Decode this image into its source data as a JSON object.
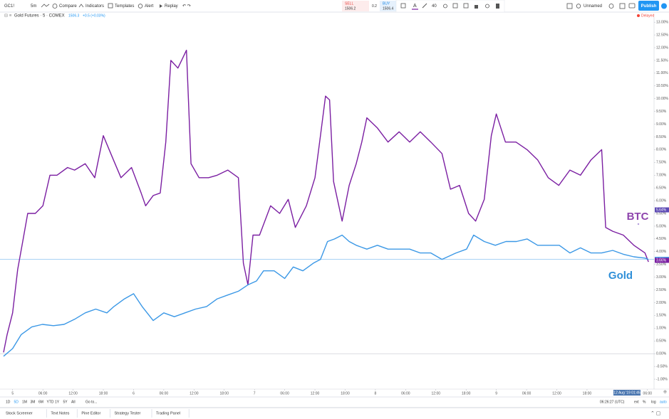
{
  "toolbar": {
    "symbol": "GC1!",
    "interval": "5m",
    "items": [
      "Compare",
      "Indicators",
      "Templates",
      "Alert",
      "Replay"
    ],
    "sell": "SELL",
    "sell_price": "1506.2",
    "spread": "0.2",
    "buy": "BUY",
    "buy_price": "1506.4",
    "line_width": "40",
    "layout": "Unnamed",
    "publish": "Publish"
  },
  "legend": {
    "title": "Gold Futures · 5 · COMEX",
    "last": "1506.3",
    "change": "+0.5 (+0.03%)",
    "status": "Delayed"
  },
  "chart_data": {
    "type": "line",
    "series": [
      {
        "name": "BTC",
        "color": "#7b1fa2",
        "x": [
          -1.8,
          -1.1,
          0,
          1,
          2,
          3,
          4.5,
          6,
          7.4,
          8.8,
          10.9,
          12.3,
          14.4,
          16.3,
          18,
          20,
          21.5,
          23.6,
          25.5,
          26.4,
          27.9,
          29.3,
          30.4,
          31.4,
          32.8,
          34.5,
          35.4,
          37,
          38.9,
          40.6,
          42.7,
          44.8,
          45.8,
          46.7,
          47.7,
          49,
          51.2,
          53,
          54.7,
          56.1,
          58.3,
          60,
          61.1,
          62.1,
          62.9,
          63.7,
          65.4,
          66.8,
          68.2,
          69.3,
          70.3,
          72.4,
          74.5,
          76.7,
          78.8,
          80.9,
          83,
          85.2,
          86.9,
          88.7,
          90.5,
          91.9,
          93.6,
          95,
          96,
          97.8,
          99.9,
          102.1,
          104.2,
          106.3,
          108.4,
          110.6,
          112.7,
          114.8,
          116.9,
          117.7,
          119.1,
          121.2,
          123.3,
          125.5,
          126.2
        ],
        "values": [
          0.05,
          0.75,
          1.6,
          3.3,
          4.4,
          5.5,
          5.5,
          5.8,
          7.0,
          7.0,
          7.3,
          7.2,
          7.45,
          6.9,
          8.55,
          7.6,
          6.9,
          7.3,
          6.3,
          5.8,
          6.2,
          6.3,
          8.3,
          11.5,
          11.2,
          11.9,
          7.45,
          6.9,
          6.9,
          7.0,
          7.2,
          6.9,
          3.55,
          2.7,
          4.65,
          4.65,
          5.8,
          5.5,
          6.05,
          4.95,
          5.8,
          6.9,
          8.55,
          10.1,
          9.95,
          6.75,
          5.2,
          6.6,
          7.45,
          8.3,
          9.25,
          8.85,
          8.3,
          8.7,
          8.3,
          8.7,
          8.3,
          7.85,
          6.45,
          6.6,
          5.5,
          5.2,
          6.05,
          8.55,
          9.4,
          8.3,
          8.3,
          8.0,
          7.6,
          6.9,
          6.6,
          7.2,
          7.0,
          7.6,
          8.0,
          4.95,
          4.8,
          4.65,
          4.25,
          3.95,
          3.6
        ]
      },
      {
        "name": "Gold",
        "color": "#3b98e6",
        "x": [
          -1.8,
          0,
          1.7,
          3.8,
          5.9,
          8.1,
          10.2,
          12.3,
          14.4,
          16.5,
          18.7,
          20.1,
          22.2,
          24,
          25.7,
          27.9,
          30,
          32.1,
          34.2,
          36.3,
          38.5,
          40.6,
          42.7,
          44.8,
          46.7,
          48.4,
          49.8,
          51.9,
          54,
          55.7,
          57.6,
          59.7,
          61.1,
          62.5,
          63.9,
          65.4,
          66.8,
          68.2,
          70.3,
          72.4,
          74.5,
          76.7,
          78.8,
          80.9,
          83,
          85.2,
          88,
          90.1,
          91.5,
          93.6,
          95.8,
          97.9,
          100,
          102.1,
          104.2,
          106.4,
          108.5,
          110.6,
          112.7,
          114.8,
          116.9,
          119.1,
          121.2,
          123.3,
          125.5,
          126.2
        ],
        "values": [
          -0.1,
          0.2,
          0.75,
          1.05,
          1.15,
          1.1,
          1.15,
          1.35,
          1.6,
          1.75,
          1.6,
          1.85,
          2.15,
          2.35,
          1.85,
          1.3,
          1.6,
          1.45,
          1.6,
          1.75,
          1.85,
          2.15,
          2.3,
          2.45,
          2.7,
          2.85,
          3.25,
          3.25,
          2.95,
          3.4,
          3.25,
          3.55,
          3.7,
          4.4,
          4.5,
          4.65,
          4.4,
          4.25,
          4.1,
          4.25,
          4.1,
          4.1,
          4.1,
          3.95,
          3.95,
          3.7,
          3.95,
          4.1,
          4.65,
          4.4,
          4.25,
          4.4,
          4.4,
          4.5,
          4.25,
          4.25,
          4.25,
          3.95,
          4.15,
          3.95,
          3.95,
          4.05,
          3.9,
          3.8,
          3.75,
          3.7
        ]
      }
    ],
    "xlim": [
      -1.8,
      127.3
    ],
    "ylim": [
      -1.25,
      13.2
    ],
    "xticks": [
      {
        "value": 0,
        "label": "5"
      },
      {
        "value": 6,
        "label": "06:00"
      },
      {
        "value": 12,
        "label": "12:00"
      },
      {
        "value": 18,
        "label": "18:00"
      },
      {
        "value": 24,
        "label": "6"
      },
      {
        "value": 30,
        "label": "06:00"
      },
      {
        "value": 36,
        "label": "12:00"
      },
      {
        "value": 42,
        "label": "18:00"
      },
      {
        "value": 48,
        "label": "7"
      },
      {
        "value": 54,
        "label": "06:00"
      },
      {
        "value": 60,
        "label": "12:00"
      },
      {
        "value": 66,
        "label": "18:00"
      },
      {
        "value": 72,
        "label": "8"
      },
      {
        "value": 78,
        "label": "06:00"
      },
      {
        "value": 84,
        "label": "12:00"
      },
      {
        "value": 90,
        "label": "18:00"
      },
      {
        "value": 96,
        "label": "9"
      },
      {
        "value": 102,
        "label": "06:00"
      },
      {
        "value": 108,
        "label": "12:00"
      },
      {
        "value": 114,
        "label": "18:00"
      },
      {
        "value": 126,
        "label": "06:00"
      }
    ],
    "yticks": [
      {
        "value": -1,
        "label": "-1.00%"
      },
      {
        "value": -0.5,
        "label": "-0.50%"
      },
      {
        "value": 0,
        "label": "0.00%"
      },
      {
        "value": 0.5,
        "label": "0.50%"
      },
      {
        "value": 1,
        "label": "1.00%"
      },
      {
        "value": 1.5,
        "label": "1.50%"
      },
      {
        "value": 2,
        "label": "2.00%"
      },
      {
        "value": 2.5,
        "label": "2.50%"
      },
      {
        "value": 3,
        "label": "3.00%"
      },
      {
        "value": 3.5,
        "label": "3.50%"
      },
      {
        "value": 4,
        "label": "4.00%"
      },
      {
        "value": 4.5,
        "label": "4.50%"
      },
      {
        "value": 5,
        "label": "5.00%"
      },
      {
        "value": 5.5,
        "label": "5.50%"
      },
      {
        "value": 6,
        "label": "6.00%"
      },
      {
        "value": 6.5,
        "label": "6.50%"
      },
      {
        "value": 7,
        "label": "7.00%"
      },
      {
        "value": 7.5,
        "label": "7.50%"
      },
      {
        "value": 8,
        "label": "8.00%"
      },
      {
        "value": 8.5,
        "label": "8.50%"
      },
      {
        "value": 9,
        "label": "9.00%"
      },
      {
        "value": 9.5,
        "label": "9.50%"
      },
      {
        "value": 10,
        "label": "10.00%"
      },
      {
        "value": 10.5,
        "label": "10.50%"
      },
      {
        "value": 11,
        "label": "11.00%"
      },
      {
        "value": 11.5,
        "label": "11.50%"
      },
      {
        "value": 12,
        "label": "12.00%"
      },
      {
        "value": 12.5,
        "label": "12.50%"
      },
      {
        "value": 13,
        "label": "13.00%"
      }
    ],
    "zero_line": true,
    "price_labels": [
      {
        "value": 5.64,
        "label": "5.64%",
        "color": "#5e4bb5",
        "line": false
      },
      {
        "value": 3.7,
        "label": "3.70%",
        "color": "#3b98e6",
        "line": true
      },
      {
        "value": 3.66,
        "label": "3.66%",
        "color": "#7b1fa2",
        "line": false
      }
    ],
    "crosshair_label": "12 Aug '19 01:45"
  },
  "bottom_bar": {
    "ranges": [
      "1D",
      "5D",
      "1M",
      "3M",
      "6M",
      "YTD",
      "1Y",
      "5Y",
      "All"
    ],
    "goto": "Go to...",
    "clock": "06:26:27 (UTC)",
    "options": [
      "ext",
      "%",
      "log",
      "auto"
    ]
  },
  "footer": {
    "tabs": [
      "Stock Screener",
      "Text Notes",
      "Pine Editor",
      "Strategy Tester",
      "Trading Panel"
    ]
  }
}
